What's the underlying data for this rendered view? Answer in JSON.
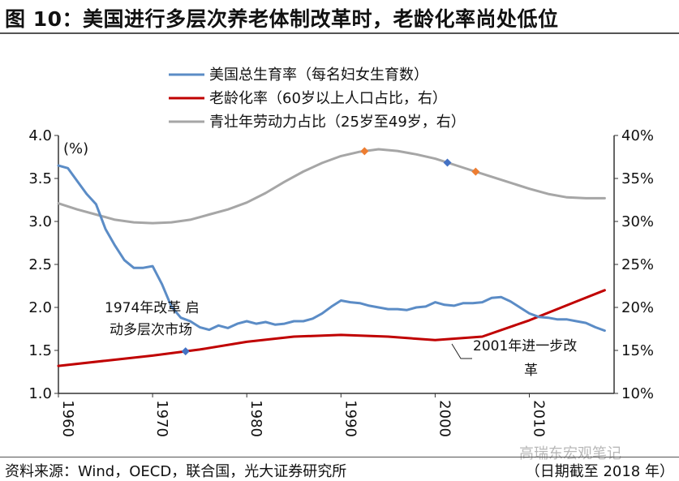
{
  "title": "图 10：美国进行多层次养老体制改革时，老龄化率尚处低位",
  "footer": {
    "source": "资料来源：Wind，OECD，联合国，光大证券研究所",
    "note": "（日期截至 2018 年）",
    "watermark": "高瑞东宏观笔记"
  },
  "chart_data": {
    "type": "line",
    "unit_label": "(%)",
    "x_axis": {
      "range": [
        1960,
        2019
      ],
      "ticks": [
        "1960",
        "1970",
        "1980",
        "1990",
        "2000",
        "2010"
      ]
    },
    "left_axis": {
      "range": [
        1.0,
        4.0
      ],
      "ticks": [
        "1.0",
        "1.5",
        "2.0",
        "2.5",
        "3.0",
        "3.5",
        "4.0"
      ]
    },
    "right_axis": {
      "range": [
        10,
        40
      ],
      "ticks": [
        "10%",
        "15%",
        "20%",
        "25%",
        "30%",
        "35%",
        "40%"
      ]
    },
    "legend_position": "top-center",
    "series": [
      {
        "name": "美国总生育率（每名妇女生育数）",
        "axis": "left",
        "color": "#5b8cc6",
        "x": [
          1960,
          1961,
          1962,
          1963,
          1964,
          1965,
          1966,
          1967,
          1968,
          1969,
          1970,
          1971,
          1972,
          1973,
          1974,
          1975,
          1976,
          1977,
          1978,
          1979,
          1980,
          1981,
          1982,
          1983,
          1984,
          1985,
          1986,
          1987,
          1988,
          1989,
          1990,
          1991,
          1992,
          1993,
          1994,
          1995,
          1996,
          1997,
          1998,
          1999,
          2000,
          2001,
          2002,
          2003,
          2004,
          2005,
          2006,
          2007,
          2008,
          2009,
          2010,
          2011,
          2012,
          2013,
          2014,
          2015,
          2016,
          2017,
          2018
        ],
        "values": [
          3.65,
          3.62,
          3.47,
          3.32,
          3.2,
          2.91,
          2.72,
          2.55,
          2.46,
          2.46,
          2.48,
          2.27,
          2.01,
          1.88,
          1.84,
          1.77,
          1.74,
          1.79,
          1.76,
          1.81,
          1.84,
          1.81,
          1.83,
          1.8,
          1.81,
          1.84,
          1.84,
          1.87,
          1.93,
          2.01,
          2.08,
          2.06,
          2.05,
          2.02,
          2.0,
          1.98,
          1.98,
          1.97,
          2.0,
          2.01,
          2.06,
          2.03,
          2.02,
          2.05,
          2.05,
          2.06,
          2.11,
          2.12,
          2.07,
          2.0,
          1.93,
          1.89,
          1.88,
          1.86,
          1.86,
          1.84,
          1.82,
          1.77,
          1.73
        ]
      },
      {
        "name": "老龄化率（60岁以上人口占比，右）",
        "axis": "right",
        "color": "#c00000",
        "x": [
          1960,
          1965,
          1970,
          1975,
          1980,
          1985,
          1990,
          1995,
          2000,
          2005,
          2010,
          2015,
          2018
        ],
        "values": [
          13.2,
          13.8,
          14.4,
          15.1,
          16.0,
          16.6,
          16.8,
          16.6,
          16.2,
          16.6,
          18.5,
          20.7,
          22.0
        ]
      },
      {
        "name": "青壮年劳动力占比（25岁至49岁，右）",
        "axis": "right",
        "color": "#a6a6a6",
        "x": [
          1960,
          1962,
          1964,
          1966,
          1968,
          1970,
          1972,
          1974,
          1976,
          1978,
          1980,
          1982,
          1984,
          1986,
          1988,
          1990,
          1992,
          1994,
          1996,
          1998,
          2000,
          2002,
          2004,
          2006,
          2008,
          2010,
          2012,
          2014,
          2016,
          2018
        ],
        "values": [
          32.1,
          31.4,
          30.8,
          30.2,
          29.9,
          29.8,
          29.9,
          30.2,
          30.8,
          31.4,
          32.2,
          33.3,
          34.6,
          35.8,
          36.8,
          37.6,
          38.1,
          38.4,
          38.2,
          37.8,
          37.3,
          36.6,
          35.9,
          35.2,
          34.5,
          33.8,
          33.2,
          32.8,
          32.7,
          32.7
        ]
      }
    ],
    "markers": [
      {
        "series": 1,
        "x": 1973.5,
        "color": "#4472c4"
      },
      {
        "series": 2,
        "x": 1992.5,
        "color": "#ed7d31"
      },
      {
        "series": 2,
        "x": 2001.3,
        "color": "#4472c4"
      },
      {
        "series": 2,
        "x": 2004.3,
        "color": "#ed7d31"
      }
    ],
    "annotations": [
      {
        "lines": [
          "1974年改革 启",
          "动多层次市场"
        ]
      },
      {
        "lines": [
          "2001年进一步改",
          "革"
        ]
      }
    ]
  }
}
